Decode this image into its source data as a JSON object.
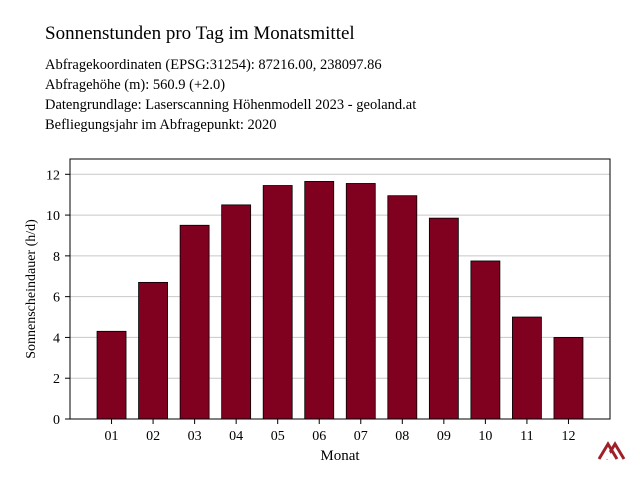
{
  "header": {
    "title": "Sonnenstunden pro Tag im Monatsmittel",
    "lines": [
      "Abfragekoordinaten (EPSG:31254): 87216.00, 238097.86",
      "Abfragehöhe (m): 560.9 (+2.0)",
      "Datengrundlage: Laserscanning Höhenmodell 2023 - geoland.at",
      "Befliegungsjahr im Abfragepunkt: 2020"
    ]
  },
  "chart_data": {
    "type": "bar",
    "categories": [
      "01",
      "02",
      "03",
      "04",
      "05",
      "06",
      "07",
      "08",
      "09",
      "10",
      "11",
      "12"
    ],
    "values": [
      4.3,
      6.7,
      9.5,
      10.5,
      11.45,
      11.65,
      11.55,
      10.95,
      9.85,
      7.75,
      5.0,
      4.0
    ],
    "xlabel": "Monat",
    "ylabel": "Sonnenscheindauer (h/d)",
    "ylim": [
      0,
      12.75
    ],
    "yticks": [
      0,
      2,
      4,
      6,
      8,
      10,
      12
    ],
    "grid": true,
    "bar_color": "#800020"
  },
  "colors": {
    "bar": "#800020",
    "grid": "#c8c8c8",
    "axis": "#000000",
    "logo": "#a0202a"
  },
  "logo": {
    "icon": "logo-icon"
  }
}
